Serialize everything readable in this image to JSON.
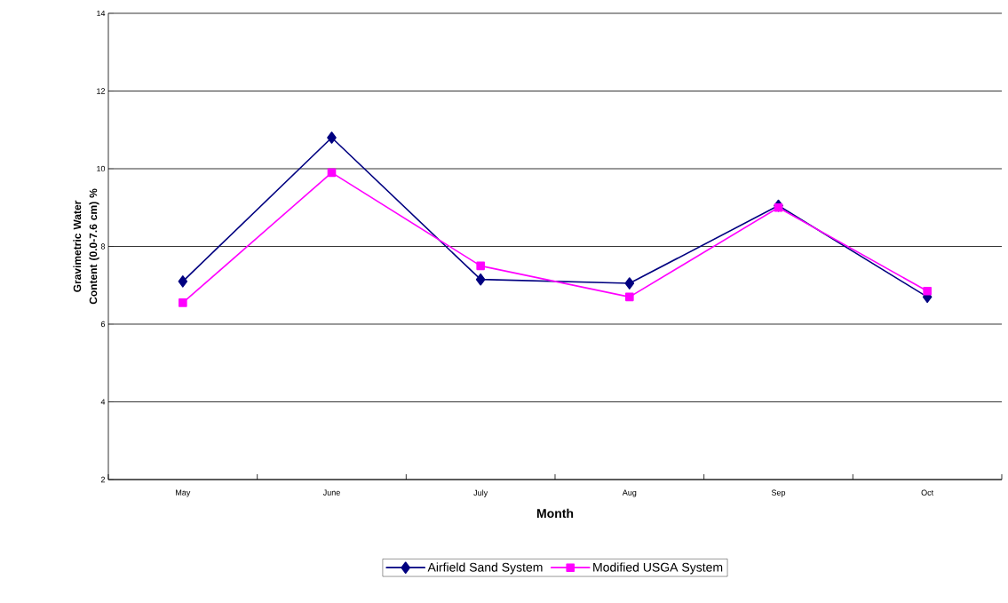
{
  "chart_data": {
    "type": "line",
    "xlabel": "Month",
    "ylabel": "Gravimetric Water Content (0.0-7.6 cm) %",
    "categories": [
      "May",
      "June",
      "July",
      "Aug",
      "Sep",
      "Oct"
    ],
    "ylim": [
      2,
      14
    ],
    "yticks": [
      2,
      4,
      6,
      8,
      10,
      12,
      14
    ],
    "grid": "y",
    "legend": "bottom",
    "line_style": "solid",
    "series": [
      {
        "name": "Airfield Sand System",
        "color": "#000080",
        "marker": "diamond",
        "values": [
          7.1,
          10.8,
          7.15,
          7.05,
          9.05,
          6.7
        ]
      },
      {
        "name": "Modified USGA System",
        "color": "#ff00ff",
        "marker": "square",
        "values": [
          6.55,
          9.9,
          7.5,
          6.7,
          9.0,
          6.85
        ]
      }
    ]
  }
}
